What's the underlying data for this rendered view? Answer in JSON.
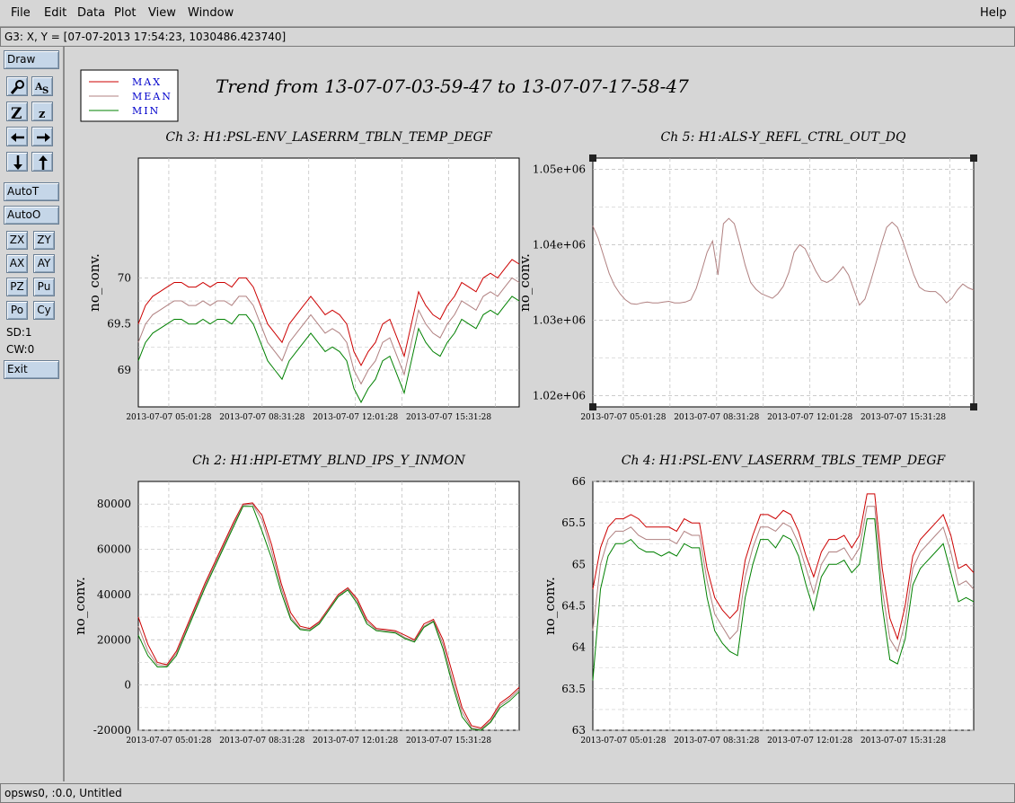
{
  "menu": {
    "items": [
      {
        "label": "File"
      },
      {
        "label": "Edit"
      },
      {
        "label": "Data"
      },
      {
        "label": "Plot"
      },
      {
        "label": "View"
      },
      {
        "label": "Window"
      }
    ],
    "help": "Help"
  },
  "coord_readout": "G3: X, Y = [07-07-2013 17:54:23, 1030486.423740]",
  "toolbar": {
    "draw": "Draw",
    "autot": "AutoT",
    "autoo": "AutoO",
    "zx": "ZX",
    "zy": "ZY",
    "ax": "AX",
    "ay": "AY",
    "pz": "PZ",
    "pu": "Pu",
    "po": "Po",
    "cy": "Cy",
    "sd": "SD:1",
    "cw": "CW:0",
    "exit": "Exit",
    "icons": [
      "zoom-icon",
      "text-label-icon",
      "zoom-in-icon",
      "zoom-out-icon",
      "left-arrow-icon",
      "right-arrow-icon",
      "down-arrow-icon",
      "up-arrow-icon"
    ]
  },
  "legend": {
    "max": "MAX",
    "mean": "MEAN",
    "min": "MIN",
    "colors": {
      "max": "#cc0000",
      "mean": "#b08080",
      "min": "#008000"
    }
  },
  "main_title": "Trend from 13-07-07-03-59-47 to 13-07-07-17-58-47",
  "status": "opsws0, :0.0, Untitled",
  "chart_data": [
    {
      "type": "line",
      "title": "Ch 3: H1:PSL-ENV_LASERRM_TBLN_TEMP_DEGF",
      "ylabel": "no_conv.",
      "xlabel": "",
      "ylim": [
        68.6,
        71.3
      ],
      "yticks": [
        "69",
        "69.5",
        "70"
      ],
      "xticks": [
        "2013-07-07 05:01:28",
        "2013-07-07 08:31:28",
        "2013-07-07 12:01:28",
        "2013-07-07 15:31:28"
      ],
      "series": [
        {
          "name": "MAX",
          "values": [
            69.5,
            69.7,
            69.8,
            69.85,
            69.9,
            69.95,
            69.95,
            69.9,
            69.9,
            69.95,
            69.9,
            69.95,
            69.95,
            69.9,
            70.0,
            70.0,
            69.9,
            69.7,
            69.5,
            69.4,
            69.3,
            69.5,
            69.6,
            69.7,
            69.8,
            69.7,
            69.6,
            69.65,
            69.6,
            69.5,
            69.2,
            69.05,
            69.2,
            69.3,
            69.5,
            69.55,
            69.35,
            69.15,
            69.5,
            69.85,
            69.7,
            69.6,
            69.55,
            69.7,
            69.8,
            69.95,
            69.9,
            69.85,
            70.0,
            70.05,
            70.0,
            70.1,
            70.2,
            70.15
          ]
        },
        {
          "name": "MEAN",
          "values": [
            69.3,
            69.5,
            69.6,
            69.65,
            69.7,
            69.75,
            69.75,
            69.7,
            69.7,
            69.75,
            69.7,
            69.75,
            69.75,
            69.7,
            69.8,
            69.8,
            69.7,
            69.5,
            69.3,
            69.2,
            69.1,
            69.3,
            69.4,
            69.5,
            69.6,
            69.5,
            69.4,
            69.45,
            69.4,
            69.3,
            69.0,
            68.85,
            69.0,
            69.1,
            69.3,
            69.35,
            69.15,
            68.95,
            69.3,
            69.65,
            69.5,
            69.4,
            69.35,
            69.5,
            69.6,
            69.75,
            69.7,
            69.65,
            69.8,
            69.85,
            69.8,
            69.9,
            70.0,
            69.95
          ]
        },
        {
          "name": "MIN",
          "values": [
            69.1,
            69.3,
            69.4,
            69.45,
            69.5,
            69.55,
            69.55,
            69.5,
            69.5,
            69.55,
            69.5,
            69.55,
            69.55,
            69.5,
            69.6,
            69.6,
            69.5,
            69.3,
            69.1,
            69.0,
            68.9,
            69.1,
            69.2,
            69.3,
            69.4,
            69.3,
            69.2,
            69.25,
            69.2,
            69.1,
            68.8,
            68.65,
            68.8,
            68.9,
            69.1,
            69.15,
            68.95,
            68.75,
            69.1,
            69.45,
            69.3,
            69.2,
            69.15,
            69.3,
            69.4,
            69.55,
            69.5,
            69.45,
            69.6,
            69.65,
            69.6,
            69.7,
            69.8,
            69.75
          ]
        }
      ]
    },
    {
      "type": "line",
      "title": "Ch 5: H1:ALS-Y_REFL_CTRL_OUT_DQ",
      "ylabel": "no_conv.",
      "xlabel": "",
      "ylim": [
        1018500,
        1051500
      ],
      "yticks": [
        "1.02e+06",
        "1.03e+06",
        "1.04e+06",
        "1.05e+06"
      ],
      "xticks": [
        "2013-07-07 05:01:28",
        "2013-07-07 08:31:28",
        "2013-07-07 12:01:28",
        "2013-07-07 15:31:28"
      ],
      "series": [
        {
          "name": "MEAN",
          "values": [
            1042500,
            1040800,
            1038500,
            1036200,
            1034600,
            1033500,
            1032700,
            1032200,
            1032100,
            1032300,
            1032400,
            1032300,
            1032300,
            1032400,
            1032500,
            1032300,
            1032300,
            1032400,
            1032700,
            1034200,
            1036500,
            1039000,
            1040500,
            1036000,
            1042800,
            1043500,
            1042800,
            1040200,
            1037300,
            1035000,
            1034100,
            1033500,
            1033200,
            1032900,
            1033500,
            1034500,
            1036300,
            1039000,
            1040000,
            1039500,
            1038000,
            1036500,
            1035300,
            1035000,
            1035400,
            1036200,
            1037100,
            1036000,
            1034000,
            1032000,
            1032800,
            1035000,
            1037500,
            1040000,
            1042300,
            1043000,
            1042300,
            1040400,
            1038200,
            1036000,
            1034400,
            1033900,
            1033800,
            1033800,
            1033200,
            1032300,
            1032900,
            1034000,
            1034800,
            1034300,
            1034000
          ]
        }
      ]
    },
    {
      "type": "line",
      "title": "Ch 2: H1:HPI-ETMY_BLND_IPS_Y_INMON",
      "ylabel": "no_conv.",
      "xlabel": "",
      "ylim": [
        -20000,
        90000
      ],
      "yticks": [
        "-20000",
        "0",
        "20000",
        "40000",
        "60000",
        "80000"
      ],
      "xticks": [
        "2013-07-07 05:01:28",
        "2013-07-07 08:31:28",
        "2013-07-07 12:01:28",
        "2013-07-07 15:31:28"
      ],
      "series": [
        {
          "name": "MAX",
          "values": [
            30000,
            18000,
            10000,
            9000,
            15000,
            25000,
            35000,
            45000,
            54000,
            63000,
            72000,
            80000,
            80500,
            75000,
            62000,
            45000,
            32000,
            26000,
            25000,
            28000,
            34000,
            40000,
            43000,
            38000,
            29000,
            25000,
            24500,
            24000,
            22000,
            20000,
            27000,
            29000,
            20000,
            5000,
            -10000,
            -18000,
            -19000,
            -15000,
            -8000,
            -5000,
            -1000
          ]
        },
        {
          "name": "MEAN",
          "values": [
            26000,
            15000,
            9000,
            8500,
            14000,
            24000,
            34000,
            44000,
            53000,
            62000,
            71000,
            79500,
            80000,
            73000,
            59000,
            43000,
            30000,
            25000,
            24500,
            27500,
            33500,
            39500,
            42500,
            37000,
            28000,
            24500,
            24000,
            23500,
            21000,
            19500,
            26000,
            28500,
            18000,
            2000,
            -12000,
            -19000,
            -19500,
            -16000,
            -9000,
            -6000,
            -2000
          ]
        },
        {
          "name": "MIN",
          "values": [
            22000,
            13000,
            8000,
            8000,
            13000,
            23000,
            33000,
            43000,
            52000,
            61000,
            70000,
            79000,
            79000,
            68000,
            56000,
            41000,
            29000,
            24500,
            24000,
            27000,
            33000,
            39000,
            42000,
            36000,
            27000,
            24000,
            23500,
            23000,
            20500,
            19000,
            25500,
            28000,
            16000,
            0,
            -14000,
            -19500,
            -20000,
            -16500,
            -10000,
            -7000,
            -3000
          ]
        }
      ]
    },
    {
      "type": "line",
      "title": "Ch 4: H1:PSL-ENV_LASERRM_TBLS_TEMP_DEGF",
      "ylabel": "no_conv.",
      "xlabel": "",
      "ylim": [
        63,
        66
      ],
      "yticks": [
        "63",
        "63.5",
        "64",
        "64.5",
        "65",
        "65.5",
        "66"
      ],
      "xticks": [
        "2013-07-07 05:01:28",
        "2013-07-07 08:31:28",
        "2013-07-07 12:01:28",
        "2013-07-07 15:31:28"
      ],
      "series": [
        {
          "name": "MAX",
          "values": [
            64.7,
            65.2,
            65.45,
            65.55,
            65.55,
            65.6,
            65.55,
            65.45,
            65.45,
            65.45,
            65.45,
            65.4,
            65.55,
            65.5,
            65.5,
            64.95,
            64.6,
            64.45,
            64.35,
            64.45,
            65.05,
            65.35,
            65.6,
            65.6,
            65.55,
            65.65,
            65.6,
            65.4,
            65.1,
            64.85,
            65.15,
            65.3,
            65.3,
            65.35,
            65.2,
            65.35,
            65.85,
            65.85,
            64.95,
            64.35,
            64.1,
            64.5,
            65.1,
            65.3,
            65.4,
            65.5,
            65.6,
            65.35,
            64.95,
            65.0,
            64.9
          ]
        },
        {
          "name": "MEAN",
          "values": [
            64.2,
            65.0,
            65.3,
            65.4,
            65.4,
            65.45,
            65.35,
            65.3,
            65.3,
            65.3,
            65.3,
            65.25,
            65.4,
            65.35,
            65.35,
            64.8,
            64.4,
            64.25,
            64.1,
            64.2,
            64.85,
            65.2,
            65.45,
            65.45,
            65.4,
            65.5,
            65.45,
            65.25,
            64.95,
            64.65,
            65.0,
            65.15,
            65.15,
            65.2,
            65.05,
            65.2,
            65.7,
            65.7,
            64.7,
            64.1,
            63.95,
            64.3,
            64.95,
            65.15,
            65.25,
            65.35,
            65.45,
            65.15,
            64.75,
            64.8,
            64.7
          ]
        },
        {
          "name": "MIN",
          "values": [
            63.6,
            64.7,
            65.1,
            65.25,
            65.25,
            65.3,
            65.2,
            65.15,
            65.15,
            65.1,
            65.15,
            65.1,
            65.25,
            65.2,
            65.2,
            64.6,
            64.2,
            64.05,
            63.95,
            63.9,
            64.6,
            65.0,
            65.3,
            65.3,
            65.2,
            65.35,
            65.3,
            65.1,
            64.75,
            64.45,
            64.85,
            65.0,
            65.0,
            65.05,
            64.9,
            65.0,
            65.55,
            65.55,
            64.5,
            63.85,
            63.8,
            64.1,
            64.75,
            64.95,
            65.05,
            65.15,
            65.25,
            64.9,
            64.55,
            64.6,
            64.55
          ]
        }
      ]
    }
  ]
}
